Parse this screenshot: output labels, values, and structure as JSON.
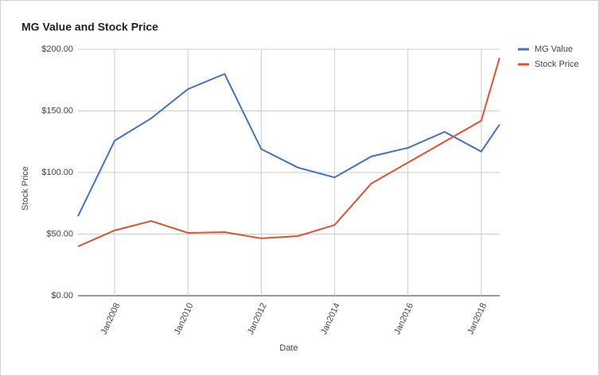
{
  "chart_data": {
    "type": "line",
    "title": "MG Value and Stock Price",
    "x_label": "Date",
    "y_label": "Stock Price",
    "x": [
      2007,
      2008,
      2009,
      2010,
      2011,
      2012,
      2013,
      2014,
      2015,
      2016,
      2017,
      2018,
      2018.5
    ],
    "xlim": [
      2007,
      2018.5
    ],
    "xticks": [
      {
        "value": 2008,
        "label": "Jan2008"
      },
      {
        "value": 2010,
        "label": "Jan2010"
      },
      {
        "value": 2012,
        "label": "Jan2012"
      },
      {
        "value": 2014,
        "label": "Jan2014"
      },
      {
        "value": 2016,
        "label": "Jan2016"
      },
      {
        "value": 2018,
        "label": "Jan2018"
      }
    ],
    "ylim": [
      0,
      200
    ],
    "yticks": [
      {
        "value": 0,
        "label": "$0.00"
      },
      {
        "value": 50,
        "label": "$50.00"
      },
      {
        "value": 100,
        "label": "$100.00"
      },
      {
        "value": 150,
        "label": "$150.00"
      },
      {
        "value": 200,
        "label": "$200.00"
      }
    ],
    "grid": true,
    "legend": "right",
    "series": [
      {
        "name": "MG Value",
        "color": "#4472c4",
        "values": [
          64.5,
          125.8,
          144,
          167.7,
          180,
          119,
          104,
          96,
          113,
          120,
          133,
          117,
          139
        ]
      },
      {
        "name": "Stock Price",
        "color": "#e0522d",
        "values": [
          40,
          53,
          60.6,
          51,
          51.6,
          46.5,
          48.4,
          57.4,
          91,
          108,
          125,
          142,
          193
        ]
      }
    ]
  }
}
